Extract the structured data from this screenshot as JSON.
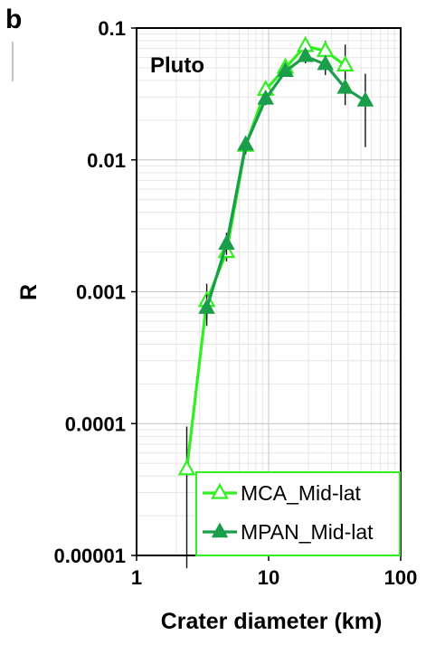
{
  "chart_data": {
    "type": "line",
    "panel_label": "b",
    "annotation": "Pluto",
    "xlabel": "Crater diameter (km)",
    "ylabel": "R",
    "xscale": "log",
    "yscale": "log",
    "xlim": [
      1,
      100
    ],
    "ylim": [
      1e-05,
      0.1
    ],
    "x_ticks": [
      {
        "value": 1,
        "label": "1"
      },
      {
        "value": 10,
        "label": "10"
      },
      {
        "value": 100,
        "label": "100"
      }
    ],
    "y_ticks": [
      {
        "value": 0.1,
        "label": "0.1"
      },
      {
        "value": 0.01,
        "label": "0.01"
      },
      {
        "value": 0.001,
        "label": "0.001"
      },
      {
        "value": 0.0001,
        "label": "0.0001"
      },
      {
        "value": 1e-05,
        "label": "0.00001"
      }
    ],
    "grid": true,
    "legend_position": "bottom-right",
    "series": [
      {
        "name": "MCA_Mid-lat",
        "color": "#33ee22",
        "marker": "open-triangle",
        "x": [
          2.4,
          3.4,
          4.8,
          6.7,
          9.5,
          13.4,
          19,
          26.9,
          38
        ],
        "y": [
          4.5e-05,
          0.00085,
          0.002,
          0.0128,
          0.034,
          0.05,
          0.073,
          0.067,
          0.052
        ],
        "err_low": [
          8e-06,
          0.00062,
          0.0017,
          0.011,
          0.03,
          0.046,
          0.064,
          0.058,
          0.038
        ],
        "err_high": [
          9.5e-05,
          0.00115,
          0.0024,
          0.0148,
          0.038,
          0.054,
          0.086,
          0.08,
          0.075
        ]
      },
      {
        "name": "MPAN_Mid-lat",
        "color": "#1a9e4a",
        "marker": "filled-triangle",
        "x": [
          3.4,
          4.8,
          6.7,
          9.5,
          13.4,
          19,
          26.9,
          38,
          54
        ],
        "y": [
          0.00075,
          0.0023,
          0.013,
          0.029,
          0.047,
          0.061,
          0.053,
          0.035,
          0.028
        ],
        "err_low": [
          0.00055,
          0.0019,
          0.0112,
          0.026,
          0.043,
          0.054,
          0.044,
          0.026,
          0.0125
        ],
        "err_high": [
          0.00095,
          0.0028,
          0.0152,
          0.033,
          0.052,
          0.07,
          0.062,
          0.045,
          0.045
        ]
      }
    ]
  }
}
